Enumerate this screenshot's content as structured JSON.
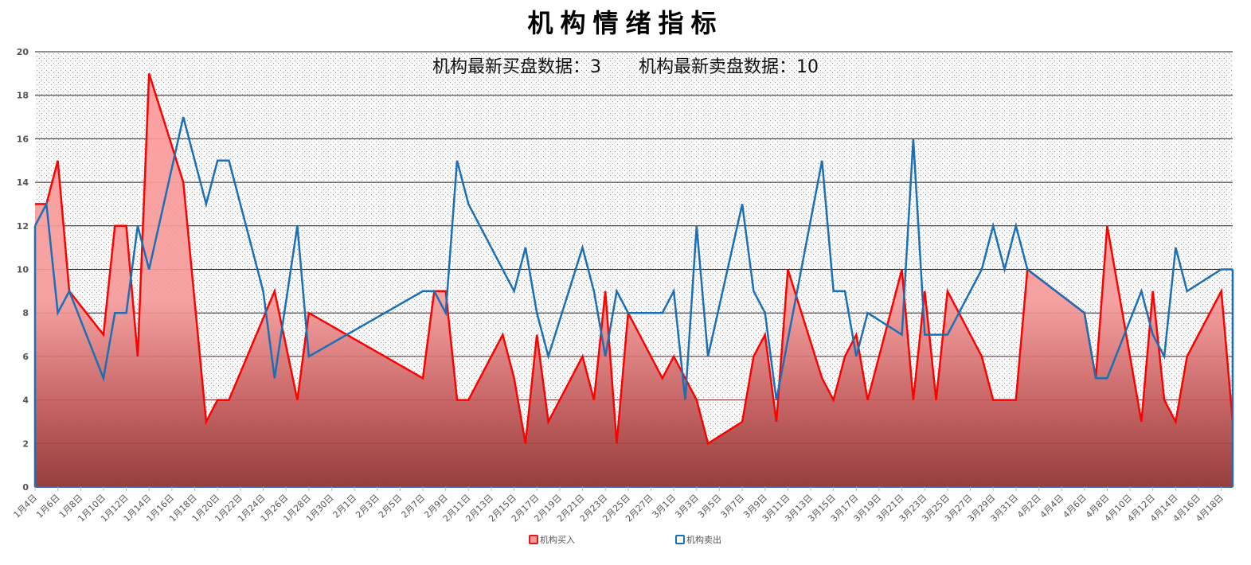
{
  "chart_data": {
    "type": "area+line",
    "title": "机构情绪指标",
    "subtitle": {
      "buy_label": "机构最新买盘数据：3",
      "sell_label": "机构最新卖盘数据：10",
      "latest_buy": 3,
      "latest_sell": 10
    },
    "xlabel": "",
    "ylabel": "",
    "ylim": [
      0,
      20
    ],
    "yticks": [
      0,
      2,
      4,
      6,
      8,
      10,
      12,
      14,
      16,
      18,
      20
    ],
    "grid": true,
    "legend_position": "bottom",
    "x_start_date": "1月4日",
    "x_days_span": 105,
    "x_tick_labels": [
      "1月4日",
      "1月6日",
      "1月8日",
      "1月10日",
      "1月12日",
      "1月14日",
      "1月16日",
      "1月18日",
      "1月20日",
      "1月22日",
      "1月24日",
      "1月26日",
      "1月28日",
      "1月30日",
      "2月1日",
      "2月3日",
      "2月5日",
      "2月7日",
      "2月9日",
      "2月11日",
      "2月13日",
      "2月15日",
      "2月17日",
      "2月19日",
      "2月21日",
      "2月23日",
      "2月25日",
      "2月27日",
      "3月1日",
      "3月3日",
      "3月5日",
      "3月7日",
      "3月9日",
      "3月11日",
      "3月13日",
      "3月15日",
      "3月17日",
      "3月19日",
      "3月21日",
      "3月23日",
      "3月25日",
      "3月27日",
      "3月29日",
      "3月31日",
      "4月2日",
      "4月4日",
      "4月6日",
      "4月8日",
      "4月10日",
      "4月12日",
      "4月14日",
      "4月16日",
      "4月18日"
    ],
    "series": [
      {
        "name": "机构买入",
        "style": "area",
        "color": "#ff0000",
        "points": [
          [
            0,
            13
          ],
          [
            1,
            13
          ],
          [
            2,
            15
          ],
          [
            3,
            9
          ],
          [
            6,
            7
          ],
          [
            7,
            12
          ],
          [
            8,
            12
          ],
          [
            9,
            6
          ],
          [
            10,
            19
          ],
          [
            13,
            14
          ],
          [
            15,
            3
          ],
          [
            16,
            4
          ],
          [
            17,
            4
          ],
          [
            21,
            9
          ],
          [
            23,
            4
          ],
          [
            24,
            8
          ],
          [
            34,
            5
          ],
          [
            35,
            9
          ],
          [
            36,
            9
          ],
          [
            37,
            4
          ],
          [
            38,
            4
          ],
          [
            41,
            7
          ],
          [
            42,
            5
          ],
          [
            43,
            2
          ],
          [
            44,
            7
          ],
          [
            45,
            3
          ],
          [
            48,
            6
          ],
          [
            49,
            4
          ],
          [
            50,
            9
          ],
          [
            51,
            2
          ],
          [
            52,
            8
          ],
          [
            55,
            5
          ],
          [
            56,
            6
          ],
          [
            57,
            5
          ],
          [
            58,
            4
          ],
          [
            59,
            2
          ],
          [
            62,
            3
          ],
          [
            63,
            6
          ],
          [
            64,
            7
          ],
          [
            65,
            3
          ],
          [
            66,
            10
          ],
          [
            69,
            5
          ],
          [
            70,
            4
          ],
          [
            71,
            6
          ],
          [
            72,
            7
          ],
          [
            73,
            4
          ],
          [
            76,
            10
          ],
          [
            77,
            4
          ],
          [
            78,
            9
          ],
          [
            79,
            4
          ],
          [
            80,
            9
          ],
          [
            83,
            6
          ],
          [
            84,
            4
          ],
          [
            85,
            4
          ],
          [
            86,
            4
          ],
          [
            87,
            10
          ],
          [
            92,
            8
          ],
          [
            93,
            5
          ],
          [
            94,
            12
          ],
          [
            97,
            3
          ],
          [
            98,
            9
          ],
          [
            99,
            4
          ],
          [
            100,
            3
          ],
          [
            101,
            6
          ],
          [
            104,
            9
          ],
          [
            105,
            3
          ]
        ]
      },
      {
        "name": "机构卖出",
        "style": "line",
        "color": "#1a6fb5",
        "points": [
          [
            0,
            12
          ],
          [
            1,
            13
          ],
          [
            2,
            8
          ],
          [
            3,
            9
          ],
          [
            6,
            5
          ],
          [
            7,
            8
          ],
          [
            8,
            8
          ],
          [
            9,
            12
          ],
          [
            10,
            10
          ],
          [
            13,
            17
          ],
          [
            15,
            13
          ],
          [
            16,
            15
          ],
          [
            17,
            15
          ],
          [
            20,
            9
          ],
          [
            21,
            5
          ],
          [
            23,
            12
          ],
          [
            24,
            6
          ],
          [
            34,
            9
          ],
          [
            35,
            9
          ],
          [
            36,
            8
          ],
          [
            37,
            15
          ],
          [
            38,
            13
          ],
          [
            42,
            9
          ],
          [
            43,
            11
          ],
          [
            44,
            8
          ],
          [
            45,
            6
          ],
          [
            48,
            11
          ],
          [
            49,
            9
          ],
          [
            50,
            6
          ],
          [
            51,
            9
          ],
          [
            52,
            8
          ],
          [
            55,
            8
          ],
          [
            56,
            9
          ],
          [
            57,
            4
          ],
          [
            58,
            12
          ],
          [
            59,
            6
          ],
          [
            62,
            13
          ],
          [
            63,
            9
          ],
          [
            64,
            8
          ],
          [
            65,
            4
          ],
          [
            69,
            15
          ],
          [
            70,
            9
          ],
          [
            71,
            9
          ],
          [
            72,
            6
          ],
          [
            73,
            8
          ],
          [
            76,
            7
          ],
          [
            77,
            16
          ],
          [
            78,
            7
          ],
          [
            79,
            7
          ],
          [
            80,
            7
          ],
          [
            83,
            10
          ],
          [
            84,
            12
          ],
          [
            85,
            10
          ],
          [
            86,
            12
          ],
          [
            87,
            10
          ],
          [
            92,
            8
          ],
          [
            93,
            5
          ],
          [
            94,
            5
          ],
          [
            97,
            9
          ],
          [
            98,
            7
          ],
          [
            99,
            6
          ],
          [
            100,
            11
          ],
          [
            101,
            9
          ],
          [
            104,
            10
          ],
          [
            105,
            10
          ]
        ]
      }
    ]
  },
  "legend": {
    "buy": {
      "label": "机构买入",
      "color": "#e31a1c"
    },
    "sell": {
      "label": "机构卖出",
      "color": "#1a6fb5"
    }
  }
}
